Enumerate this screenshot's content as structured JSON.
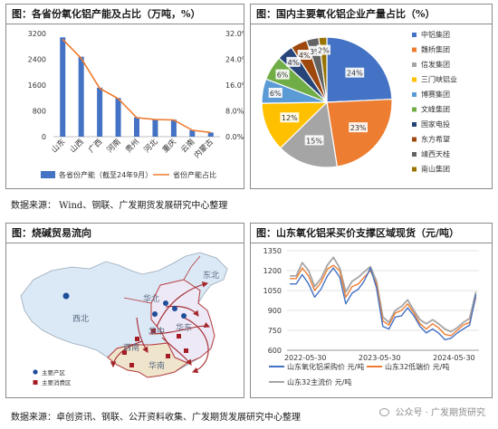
{
  "panels": {
    "capacity": {
      "title": "图：各省份氧化铝产能及占比（万吨，%）"
    },
    "share": {
      "title": "图：国内主要氧化铝企业产量占比（%）"
    },
    "flow": {
      "title": "图：烧碱贸易流向"
    },
    "price": {
      "title": "图：山东氧化铝采买价支撑区域现货（元/吨）"
    }
  },
  "sources": {
    "top": "数据来源：  Wind、钢联、广发期货发展研究中心整理",
    "bottom": "数据来源：卓创资讯、钢联、公开资料收集、广发期货发展研究中心整理"
  },
  "watermark": "公众号 · 广发期货研究",
  "colors": {
    "bar": "#4472c4",
    "share_line": "#ed7d31",
    "pie": [
      "#4472c4",
      "#ed7d31",
      "#a5a5a5",
      "#ffc000",
      "#5b9bd5",
      "#70ad47",
      "#264478",
      "#9e480e",
      "#636363",
      "#997300",
      "#255e91"
    ],
    "price_a": "#4472c4",
    "price_b": "#ed7d31",
    "price_c": "#a5a5a5",
    "map_land": "#dbe8f5",
    "map_east": "#ede9f7",
    "map_south": "#efe4cc",
    "map_border": "#b53d3d",
    "arrow": "#a3262a",
    "producer": "#1f4e99",
    "consumer": "#a61c24"
  },
  "icons": {
    "watermark": "wechat-icon",
    "map_producer_legend": "blue-dot-icon",
    "map_consumer_legend": "red-square-icon"
  },
  "chart_data": [
    {
      "type": "bar",
      "title": "图：各省份氧化铝产能及占比（万吨，%）",
      "categories": [
        "山东",
        "山西",
        "广西",
        "河南",
        "贵州",
        "河北",
        "重庆",
        "云南",
        "内蒙古"
      ],
      "series": [
        {
          "name": "各省份产能（截至24年9月）",
          "type": "bar",
          "axis": "left",
          "values": [
            3080,
            2480,
            1520,
            1200,
            600,
            540,
            530,
            200,
            130
          ]
        },
        {
          "name": "省份产能占比",
          "type": "line",
          "axis": "right",
          "values": [
            30.2,
            24.3,
            15.0,
            11.8,
            5.9,
            5.3,
            5.2,
            2.0,
            1.3
          ]
        }
      ],
      "ylim": [
        0,
        3200
      ],
      "yticks": [
        "0",
        "800",
        "1600",
        "2400",
        "3200"
      ],
      "y2lim": [
        0,
        32
      ],
      "y2ticks": [
        "0.0%",
        "8.0%",
        "16.0%",
        "24.0%",
        "32.0%"
      ],
      "legend_position": "bottom",
      "grid": false
    },
    {
      "type": "pie",
      "title": "图：国内主要氧化铝企业产量占比（%）",
      "labels": [
        "中铝集团",
        "魏桥集团",
        "信发集团",
        "三门峡铝业",
        "博赛集团",
        "文峰集团",
        "国家电投",
        "东方希望",
        "靖西天桂",
        "南山集团"
      ],
      "values": [
        24,
        23,
        15,
        12,
        6,
        6,
        4,
        4,
        3,
        2
      ],
      "value_labels": [
        "24%",
        "23%",
        "15%",
        "12%",
        "6%",
        "6%",
        "4%",
        "4%",
        "3%",
        "2%"
      ],
      "legend_position": "right"
    },
    {
      "type": "map",
      "title": "图：烧碱贸易流向",
      "region_labels": [
        "东北",
        "西北",
        "华北",
        "华中",
        "华东",
        "西南",
        "华南"
      ],
      "legend": [
        "主要产区",
        "主要消费区"
      ]
    },
    {
      "type": "line",
      "title": "图：山东氧化铝采买价支撑区域现货（元/吨）",
      "x_ticks": [
        "2022-05-30",
        "2023-05-30",
        "2024-05-30"
      ],
      "xlim": [
        "2022-03-01",
        "2024-09-30"
      ],
      "ylim": [
        600,
        1350
      ],
      "yticks": [
        "600",
        "750",
        "900",
        "1050",
        "1200",
        "1350"
      ],
      "x": [
        "2022-03",
        "2022-04",
        "2022-05",
        "2022-06",
        "2022-07",
        "2022-08",
        "2022-09",
        "2022-10",
        "2022-11",
        "2022-12",
        "2023-01",
        "2023-02",
        "2023-03",
        "2023-04",
        "2023-05",
        "2023-06",
        "2023-07",
        "2023-08",
        "2023-09",
        "2023-10",
        "2023-11",
        "2023-12",
        "2024-01",
        "2024-02",
        "2024-03",
        "2024-04",
        "2024-05",
        "2024-06",
        "2024-07",
        "2024-08",
        "2024-09"
      ],
      "series": [
        {
          "name": "山东氧化铝采购价 元/吨",
          "values": [
            1100,
            1100,
            1170,
            1100,
            1000,
            1060,
            1160,
            1220,
            1150,
            950,
            1030,
            1060,
            1120,
            1220,
            1070,
            780,
            760,
            850,
            860,
            920,
            860,
            780,
            730,
            760,
            730,
            680,
            690,
            730,
            760,
            790,
            1020
          ]
        },
        {
          "name": "山东32低端价 元/吨",
          "values": [
            1140,
            1140,
            1220,
            1160,
            1050,
            1110,
            1210,
            1240,
            1200,
            1000,
            1080,
            1100,
            1150,
            1200,
            1100,
            820,
            790,
            880,
            900,
            950,
            880,
            800,
            760,
            800,
            770,
            720,
            710,
            750,
            790,
            810,
            1000
          ]
        },
        {
          "name": "山东32主流价 元/吨",
          "values": [
            1160,
            1160,
            1260,
            1200,
            1080,
            1140,
            1240,
            1300,
            1220,
            1040,
            1120,
            1150,
            1190,
            1230,
            1120,
            850,
            810,
            900,
            930,
            980,
            900,
            830,
            800,
            830,
            800,
            760,
            740,
            770,
            810,
            840,
            1040
          ]
        }
      ],
      "legend_position": "bottom",
      "grid": true
    }
  ]
}
